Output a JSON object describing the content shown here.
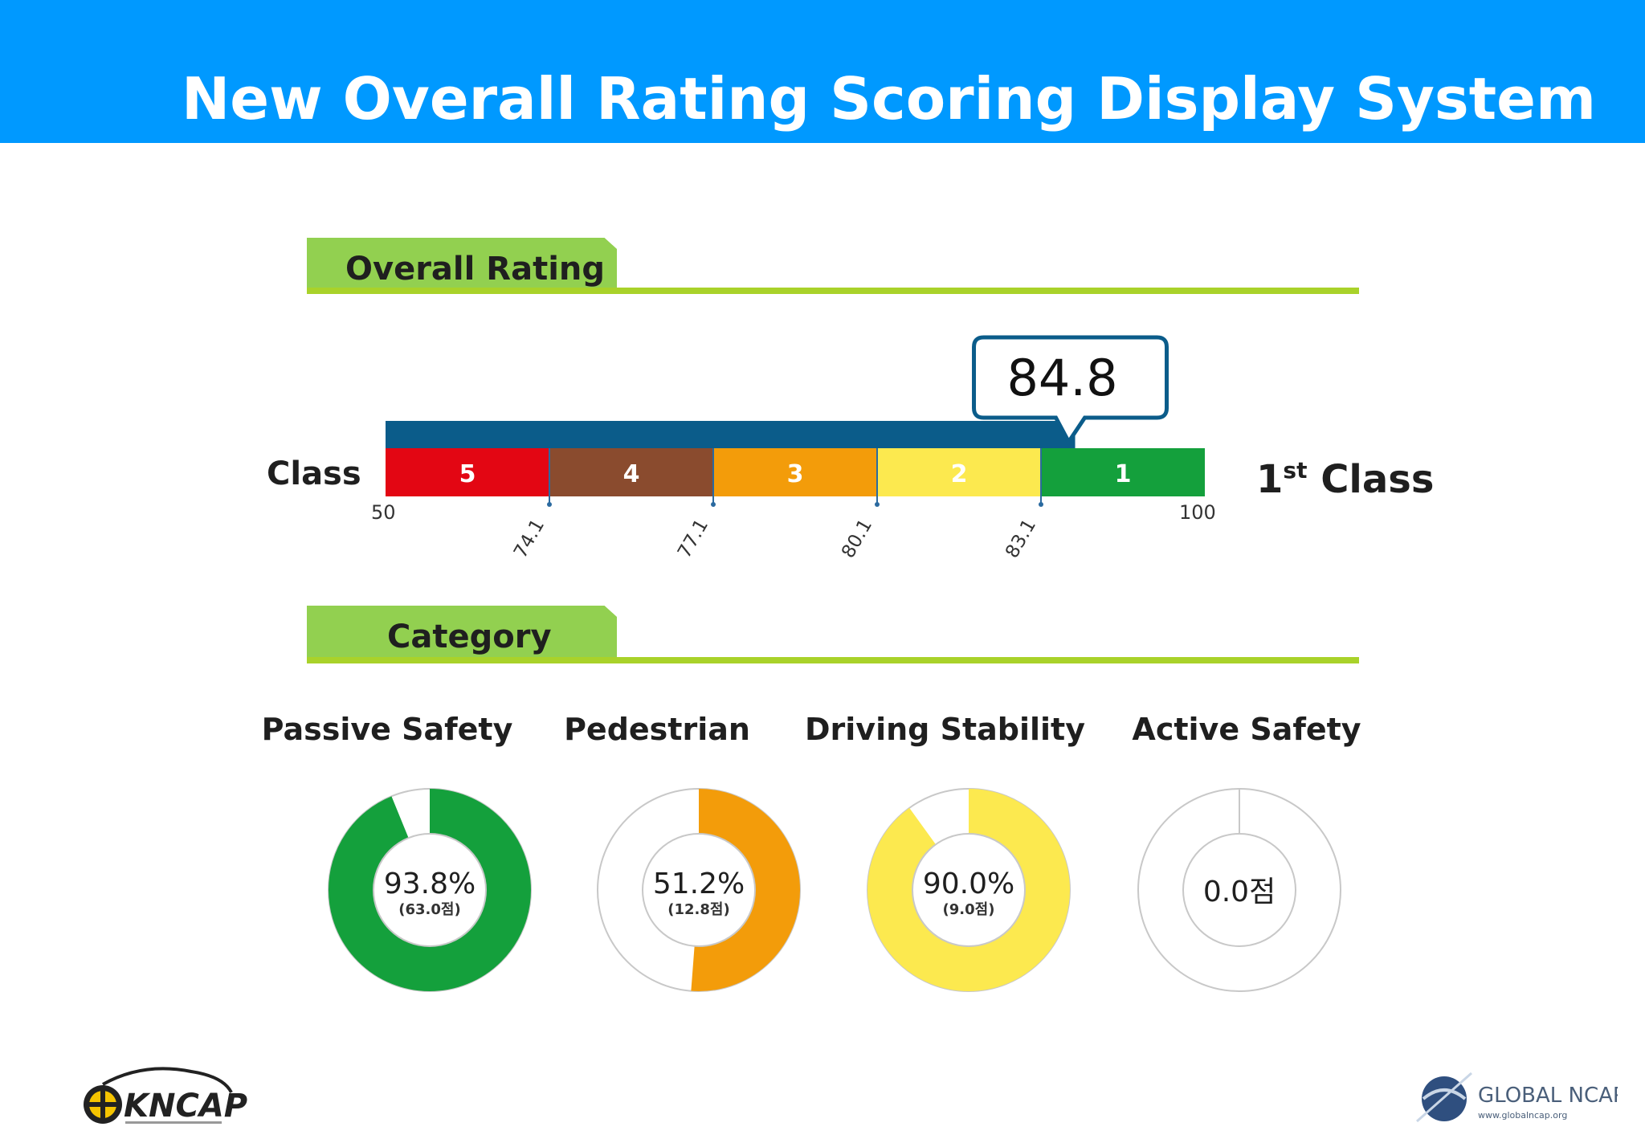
{
  "header": {
    "title": "New Overall Rating Scoring Display System"
  },
  "overall_rating": {
    "section_label": "Overall Rating",
    "score": "84.8",
    "score_value": 84.8,
    "row_label": "Class",
    "result_number": "1",
    "result_suffix": "st",
    "result_word": "Class",
    "scale_min": 50,
    "scale_max": 100,
    "scale_min_label": "50",
    "scale_max_label": "100",
    "segments": [
      {
        "label": "5",
        "from": 50,
        "to": 74.1,
        "color": "#e30613",
        "text_color": "#ffffff"
      },
      {
        "label": "4",
        "from": 74.1,
        "to": 77.1,
        "color": "#8a4b2e",
        "text_color": "#ffffff"
      },
      {
        "label": "3",
        "from": 77.1,
        "to": 80.1,
        "color": "#f39c0a",
        "text_color": "#ffffff"
      },
      {
        "label": "2",
        "from": 80.1,
        "to": 83.1,
        "color": "#fce94f",
        "text_color": "#ffffff"
      },
      {
        "label": "1",
        "from": 83.1,
        "to": 100,
        "color": "#14a03c",
        "text_color": "#ffffff"
      }
    ],
    "ticks": [
      "74.1",
      "77.1",
      "80.1",
      "83.1"
    ],
    "bar_color": "#0b5c8a",
    "callout_border": "#0b5c8a"
  },
  "category": {
    "section_label": "Category",
    "items": [
      {
        "title": "Passive Safety",
        "percent_label": "93.8%",
        "points_label": "(63.0점)",
        "fraction": 0.938,
        "color": "#14a03c"
      },
      {
        "title": "Pedestrian",
        "percent_label": "51.2%",
        "points_label": "(12.8점)",
        "fraction": 0.512,
        "color": "#f39c0a"
      },
      {
        "title": "Driving Stability",
        "percent_label": "90.0%",
        "points_label": "(9.0점)",
        "fraction": 0.9,
        "color": "#fce94f"
      },
      {
        "title": "Active Safety",
        "percent_label": "0.0점",
        "points_label": "",
        "fraction": 0.0,
        "color": "#cccccc"
      }
    ]
  },
  "logos": {
    "left": {
      "name": "KNCAP",
      "icon": "kncap-logo"
    },
    "right": {
      "name": "GLOBAL NCAP",
      "url_text": "www.globalncap.org",
      "icon": "global-ncap-logo"
    }
  },
  "colors": {
    "header_bg": "#0099ff",
    "section_tab": "#92d050",
    "section_line": "#a9d22a",
    "ring_track": "#cccccc"
  }
}
